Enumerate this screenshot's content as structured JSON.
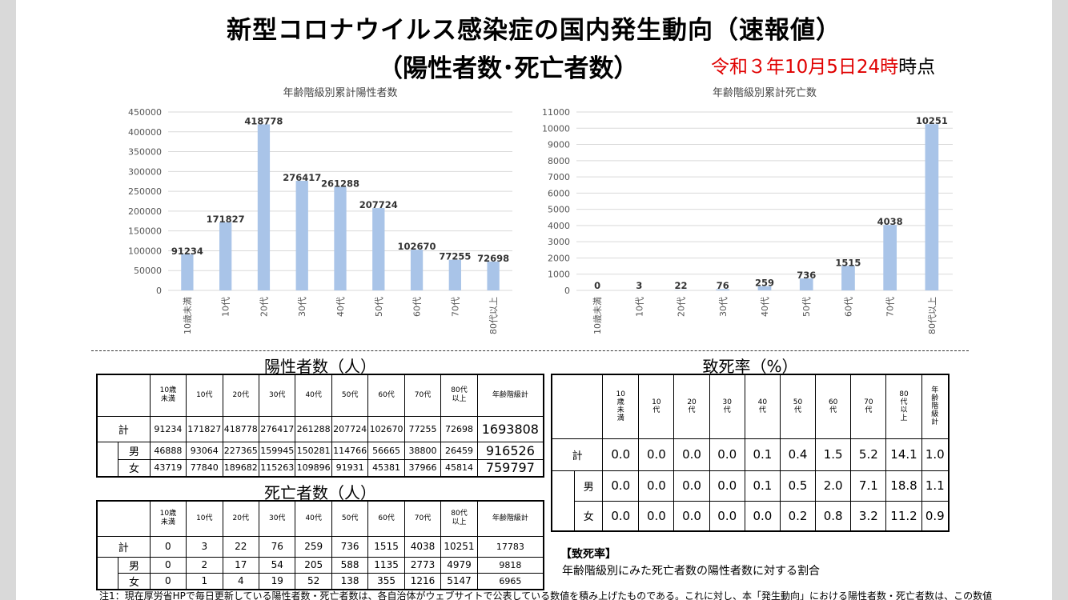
{
  "header": {
    "title_line1": "新型コロナウイルス感染症の国内発生動向（速報値）",
    "title_line2": "（陽性者数･死亡者数）",
    "date_red": "令和３年10月5日24時",
    "date_black": "時点"
  },
  "chart_data": [
    {
      "type": "bar",
      "title": "年齢階級別累計陽性者数",
      "categories": [
        "10歳未満",
        "10代",
        "20代",
        "30代",
        "40代",
        "50代",
        "60代",
        "70代",
        "80代以上"
      ],
      "values": [
        91234,
        171827,
        418778,
        276417,
        261288,
        207724,
        102670,
        77255,
        72698
      ],
      "value_labels": [
        "91234",
        "171827",
        "418778",
        "276417",
        "261288",
        "207724",
        "102670",
        "77255",
        "72698"
      ],
      "ylim": [
        0,
        450000
      ],
      "ytick_labels": [
        "0",
        "50000",
        "100000",
        "150000",
        "200000",
        "250000",
        "300000",
        "350000",
        "400000",
        "450000"
      ],
      "grid": true,
      "bar_color": "#a9c4e8"
    },
    {
      "type": "bar",
      "title": "年齢階級別累計死亡数",
      "categories": [
        "10歳未満",
        "10代",
        "20代",
        "30代",
        "40代",
        "50代",
        "60代",
        "70代",
        "80代以上"
      ],
      "values": [
        0,
        3,
        22,
        76,
        259,
        736,
        1515,
        4038,
        10251
      ],
      "value_labels": [
        "0",
        "3",
        "22",
        "76",
        "259",
        "736",
        "1515",
        "4038",
        "10251"
      ],
      "ylim": [
        0,
        11000
      ],
      "ytick_labels": [
        "0",
        "1000",
        "2000",
        "3000",
        "4000",
        "5000",
        "6000",
        "7000",
        "8000",
        "9000",
        "10000",
        "11000"
      ],
      "grid": true,
      "bar_color": "#a9c4e8"
    }
  ],
  "positives_table": {
    "title": "陽性者数（人）",
    "headers": [
      "10歳\n未満",
      "10代",
      "20代",
      "30代",
      "40代",
      "50代",
      "60代",
      "70代",
      "80代\n以上",
      "年齢階級計"
    ],
    "rows": [
      {
        "label": "計",
        "values": [
          "91234",
          "171827",
          "418778",
          "276417",
          "261288",
          "207724",
          "102670",
          "77255",
          "72698"
        ],
        "total": "1693808"
      },
      {
        "label": "男",
        "values": [
          "46888",
          "93064",
          "227365",
          "159945",
          "150281",
          "114766",
          "56665",
          "38800",
          "26459"
        ],
        "total": "916526"
      },
      {
        "label": "女",
        "values": [
          "43719",
          "77840",
          "189682",
          "115263",
          "109896",
          "91931",
          "45381",
          "37966",
          "45814"
        ],
        "total": "759797"
      }
    ]
  },
  "deaths_table": {
    "title": "死亡者数（人）",
    "headers": [
      "10歳\n未満",
      "10代",
      "20代",
      "30代",
      "40代",
      "50代",
      "60代",
      "70代",
      "80代\n以上",
      "年齢階級計"
    ],
    "rows": [
      {
        "label": "計",
        "values": [
          "0",
          "3",
          "22",
          "76",
          "259",
          "736",
          "1515",
          "4038",
          "10251"
        ],
        "total": "17783"
      },
      {
        "label": "男",
        "values": [
          "0",
          "2",
          "17",
          "54",
          "205",
          "588",
          "1135",
          "2773",
          "4979"
        ],
        "total": "9818"
      },
      {
        "label": "女",
        "values": [
          "0",
          "1",
          "4",
          "19",
          "52",
          "138",
          "355",
          "1216",
          "5147"
        ],
        "total": "6965"
      }
    ]
  },
  "fatality_table": {
    "title": "致死率（%）",
    "headers": [
      "10\n歳\n未\n満",
      "10\n代",
      "20\n代",
      "30\n代",
      "40\n代",
      "50\n代",
      "60\n代",
      "70\n代",
      "80\n代\n以\n上",
      "年\n齢\n階\n級\n計"
    ],
    "rows": [
      {
        "label": "計",
        "values": [
          "0.0",
          "0.0",
          "0.0",
          "0.0",
          "0.1",
          "0.4",
          "1.5",
          "5.2",
          "14.1",
          "1.0"
        ]
      },
      {
        "label": "男",
        "values": [
          "0.0",
          "0.0",
          "0.0",
          "0.0",
          "0.1",
          "0.5",
          "2.0",
          "7.1",
          "18.8",
          "1.1"
        ]
      },
      {
        "label": "女",
        "values": [
          "0.0",
          "0.0",
          "0.0",
          "0.0",
          "0.0",
          "0.2",
          "0.8",
          "3.2",
          "11.2",
          "0.9"
        ]
      }
    ]
  },
  "definition": {
    "title": "【致死率】",
    "text": "年齢階級別にみた死亡者数の陽性者数に対する割合"
  },
  "footnote": "注1：現在厚労省HPで毎日更新している陽性者数・死亡者数は、各自治体がウェブサイトで公表している数値を積み上げたものである。これに対し、本「発生動向」における陽性者数・死亡者数は、この数値"
}
